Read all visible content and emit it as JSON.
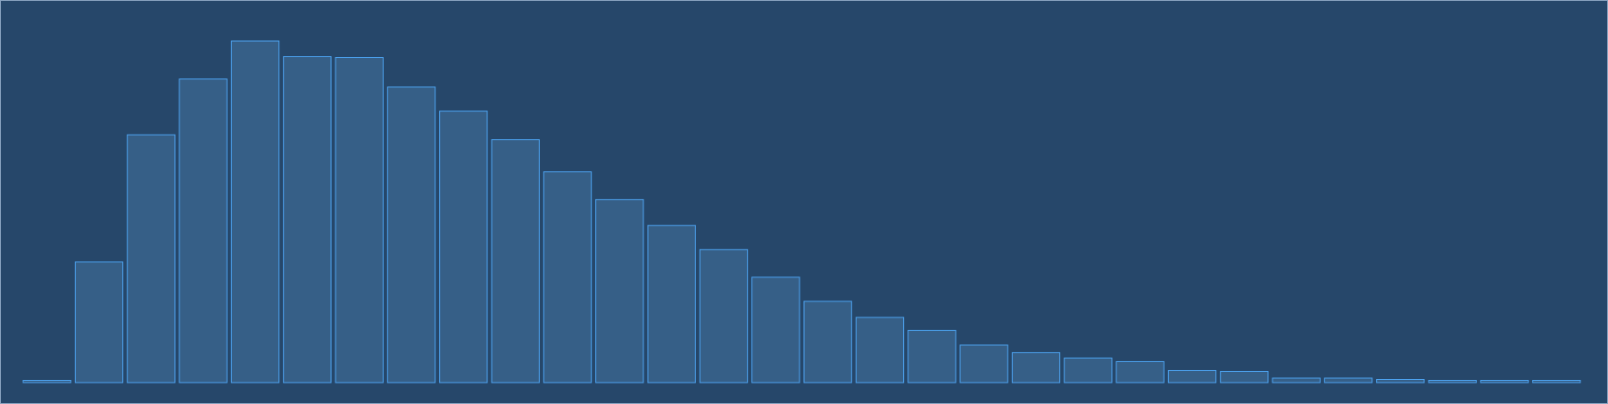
{
  "colors": {
    "background": "#26476a",
    "bar_fill": "#365f87",
    "bar_stroke": "#4da3f0",
    "frame_border": "#8aa4c0"
  },
  "chart_data": {
    "type": "bar",
    "values": [
      0.5,
      27,
      55.5,
      68,
      76.5,
      73,
      72.8,
      66.2,
      60.8,
      54.4,
      47.2,
      41,
      35.2,
      29.8,
      23.6,
      18.2,
      14.6,
      11.7,
      8.4,
      6.7,
      5.5,
      4.7,
      2.7,
      2.5,
      1,
      1,
      0.7,
      0.5,
      0.5,
      0.5
    ],
    "ylim": [
      0,
      85
    ],
    "grid": false,
    "legend": "none"
  }
}
